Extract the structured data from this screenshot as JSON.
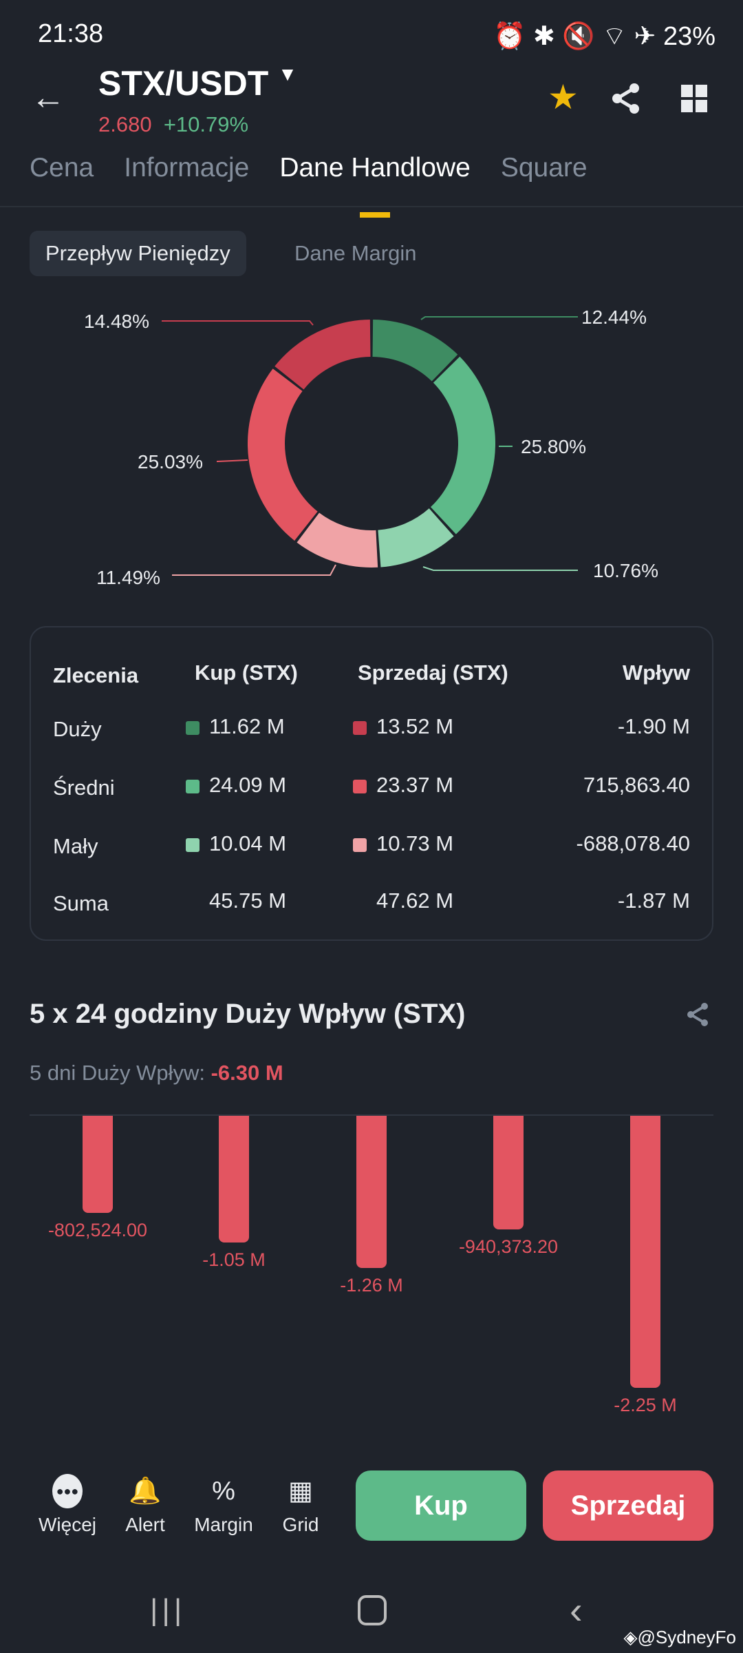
{
  "status_bar": {
    "time": "21:38",
    "battery": "23%"
  },
  "header": {
    "pair": "STX/USDT",
    "price": "2.680",
    "change": "+10.79%"
  },
  "tabs": [
    "Cena",
    "Informacje",
    "Dane Handlowe",
    "Square"
  ],
  "subtabs": [
    "Przepływ Pieniędzy",
    "Dane Margin"
  ],
  "colors": {
    "bg": "#1f232b",
    "green": "#5dba89",
    "red": "#e35561",
    "accent": "#f0b90b"
  },
  "donut": {
    "slices": [
      {
        "label": "12.44%",
        "value": 12.44,
        "color": "#3e8c62"
      },
      {
        "label": "25.80%",
        "value": 25.8,
        "color": "#5dba89"
      },
      {
        "label": "10.76%",
        "value": 10.76,
        "color": "#8fd3ae"
      },
      {
        "label": "11.49%",
        "value": 11.49,
        "color": "#f0a3a6"
      },
      {
        "label": "25.03%",
        "value": 25.03,
        "color": "#e35561"
      },
      {
        "label": "14.48%",
        "value": 14.48,
        "color": "#c73e4f"
      }
    ]
  },
  "table": {
    "headers": [
      "Zlecenia",
      "Kup (STX)",
      "Sprzedaj (STX)",
      "Wpływ"
    ],
    "rows": [
      {
        "name": "Duży",
        "buy": "11.62 M",
        "sell": "13.52 M",
        "flow": "-1.90 M",
        "buy_color": "#3e8c62",
        "sell_color": "#c73e4f"
      },
      {
        "name": "Średni",
        "buy": "24.09 M",
        "sell": "23.37 M",
        "flow": "715,863.40",
        "buy_color": "#5dba89",
        "sell_color": "#e35561"
      },
      {
        "name": "Mały",
        "buy": "10.04 M",
        "sell": "10.73 M",
        "flow": "-688,078.40",
        "buy_color": "#8fd3ae",
        "sell_color": "#f0a3a6"
      },
      {
        "name": "Suma",
        "buy": "45.75 M",
        "sell": "47.62 M",
        "flow": "-1.87 M"
      }
    ]
  },
  "inflow": {
    "title": "5 x 24 godziny Duży Wpływ (STX)",
    "subtitle_label": "5 dni Duży Wpływ:",
    "subtitle_value": "-6.30 M"
  },
  "chart_data": {
    "type": "bar",
    "values": [
      -802524.0,
      -1050000,
      -1260000,
      -940373.2,
      -2250000
    ],
    "data_labels": [
      "-802,524.00",
      "-1.05 M",
      "-1.26 M",
      "-940,373.20",
      "-2.25 M"
    ]
  },
  "toolbar": {
    "items": [
      {
        "label": "Więcej",
        "icon": "more-icon"
      },
      {
        "label": "Alert",
        "icon": "bell-icon"
      },
      {
        "label": "Margin",
        "icon": "percent-icon"
      },
      {
        "label": "Grid",
        "icon": "grid-icon"
      }
    ],
    "buy": "Kup",
    "sell": "Sprzedaj"
  },
  "watermark": "@SydneyFo"
}
